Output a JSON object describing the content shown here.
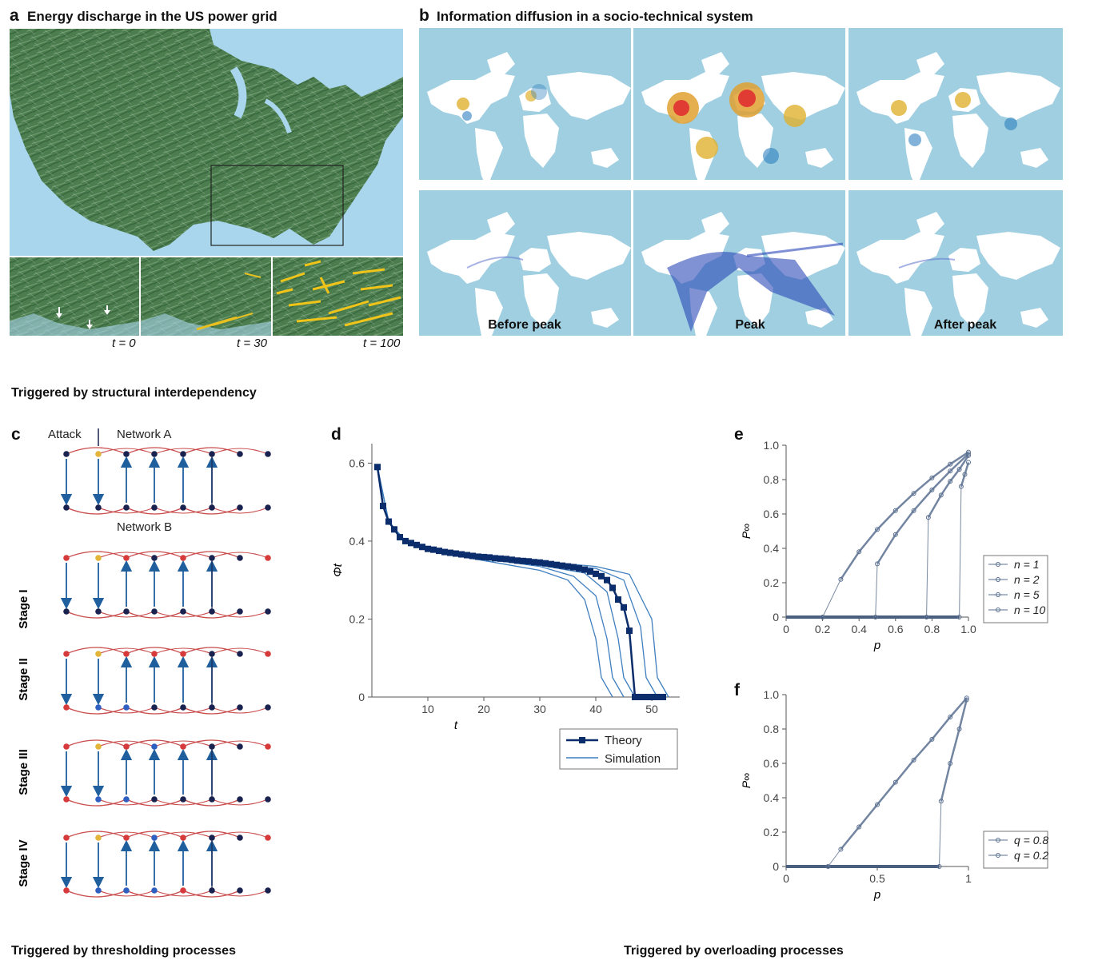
{
  "panel_a": {
    "letter": "a",
    "title": "Energy discharge in the US power grid",
    "time_labels": [
      "t = 0",
      "t = 30",
      "t = 100"
    ]
  },
  "panel_b": {
    "letter": "b",
    "title": "Information diffusion in a socio-technical system",
    "map_labels": [
      "Before peak",
      "Peak",
      "After peak"
    ]
  },
  "sections": {
    "structural": "Triggered by structural interdependency",
    "thresholding": "Triggered by thresholding processes",
    "overloading": "Triggered by overloading processes"
  },
  "panel_c": {
    "letter": "c",
    "attack_label": "Attack",
    "network_a": "Network A",
    "network_b": "Network B",
    "stages": [
      "Stage I",
      "Stage II",
      "Stage III",
      "Stage IV"
    ],
    "colors": {
      "active": "#1a2350",
      "failed": "#d63a3a",
      "attack": "#e3b43a",
      "blue": "#2f5fc0",
      "edge": "#c94b4b",
      "arrow": "#1f5f9e"
    }
  },
  "panel_d": {
    "letter": "d",
    "chart_data": {
      "type": "line",
      "xlabel": "t",
      "ylabel": "Φt",
      "xlim": [
        0,
        55
      ],
      "ylim": [
        0,
        0.65
      ],
      "xticks": [
        10,
        20,
        30,
        40,
        50
      ],
      "yticks": [
        0,
        0.2,
        0.4,
        0.6
      ],
      "series": [
        {
          "name": "Theory",
          "color": "#0c2d6b",
          "x": [
            1,
            2,
            3,
            4,
            5,
            6,
            7,
            8,
            9,
            10,
            11,
            12,
            13,
            14,
            15,
            16,
            17,
            18,
            19,
            20,
            21,
            22,
            23,
            24,
            25,
            26,
            27,
            28,
            29,
            30,
            31,
            32,
            33,
            34,
            35,
            36,
            37,
            38,
            39,
            40,
            41,
            42,
            43,
            44,
            45,
            46,
            47,
            48,
            49,
            50,
            51,
            52
          ],
          "y": [
            0.59,
            0.49,
            0.45,
            0.43,
            0.41,
            0.4,
            0.395,
            0.39,
            0.385,
            0.38,
            0.378,
            0.375,
            0.372,
            0.37,
            0.368,
            0.366,
            0.364,
            0.362,
            0.36,
            0.359,
            0.358,
            0.356,
            0.355,
            0.354,
            0.352,
            0.35,
            0.349,
            0.348,
            0.346,
            0.345,
            0.343,
            0.341,
            0.339,
            0.337,
            0.335,
            0.333,
            0.33,
            0.327,
            0.322,
            0.316,
            0.31,
            0.3,
            0.28,
            0.25,
            0.23,
            0.17,
            0,
            0,
            0,
            0,
            0,
            0
          ]
        },
        {
          "name": "Simulation",
          "color": "#3f7fbf",
          "lines": [
            {
              "x": [
                1,
                3,
                6,
                10,
                20,
                30,
                35,
                38,
                40,
                41,
                43
              ],
              "y": [
                0.59,
                0.45,
                0.4,
                0.375,
                0.35,
                0.325,
                0.3,
                0.25,
                0.15,
                0.05,
                0
              ]
            },
            {
              "x": [
                1,
                3,
                6,
                10,
                20,
                30,
                36,
                40,
                42,
                43,
                45
              ],
              "y": [
                0.59,
                0.45,
                0.4,
                0.375,
                0.355,
                0.335,
                0.31,
                0.26,
                0.15,
                0.05,
                0
              ]
            },
            {
              "x": [
                1,
                3,
                6,
                10,
                20,
                30,
                38,
                42,
                44,
                45,
                47
              ],
              "y": [
                0.59,
                0.45,
                0.4,
                0.378,
                0.358,
                0.338,
                0.318,
                0.27,
                0.15,
                0.05,
                0
              ]
            },
            {
              "x": [
                1,
                3,
                6,
                10,
                20,
                30,
                40,
                45,
                48,
                49,
                51
              ],
              "y": [
                0.59,
                0.45,
                0.4,
                0.38,
                0.36,
                0.345,
                0.33,
                0.3,
                0.18,
                0.05,
                0
              ]
            },
            {
              "x": [
                1,
                3,
                6,
                10,
                20,
                30,
                40,
                46,
                50,
                51,
                53
              ],
              "y": [
                0.59,
                0.45,
                0.4,
                0.382,
                0.362,
                0.348,
                0.335,
                0.315,
                0.2,
                0.05,
                0
              ]
            }
          ]
        }
      ],
      "legend": [
        "Theory",
        "Simulation"
      ],
      "legend_position": "bottom-right"
    }
  },
  "panel_e": {
    "letter": "e",
    "chart_data": {
      "type": "scatter",
      "xlabel": "p",
      "ylabel": "P∞",
      "xlim": [
        0,
        1.0
      ],
      "ylim": [
        0,
        1.0
      ],
      "xticks": [
        "0",
        "0.2",
        "0.4",
        "0.6",
        "0.8",
        "1.0"
      ],
      "yticks": [
        "0",
        "0.2",
        "0.4",
        "0.6",
        "0.8",
        "1.0"
      ],
      "series": [
        {
          "name": "n = 1",
          "x": [
            0.2,
            0.3,
            0.4,
            0.5,
            0.6,
            0.7,
            0.8,
            0.9,
            1.0
          ],
          "y": [
            0,
            0.22,
            0.38,
            0.51,
            0.62,
            0.72,
            0.81,
            0.89,
            0.96
          ]
        },
        {
          "name": "n = 2",
          "x": [
            0.49,
            0.5,
            0.6,
            0.7,
            0.8,
            0.9,
            1.0
          ],
          "y": [
            0,
            0.31,
            0.48,
            0.62,
            0.74,
            0.85,
            0.95
          ]
        },
        {
          "name": "n = 5",
          "x": [
            0.77,
            0.78,
            0.85,
            0.9,
            0.95,
            1.0
          ],
          "y": [
            0,
            0.58,
            0.71,
            0.79,
            0.86,
            0.94
          ]
        },
        {
          "name": "n = 10",
          "x": [
            0.95,
            0.96,
            0.98,
            1.0
          ],
          "y": [
            0,
            0.76,
            0.83,
            0.9
          ]
        }
      ],
      "legend_position": "right"
    }
  },
  "panel_f": {
    "letter": "f",
    "chart_data": {
      "type": "scatter",
      "xlabel": "p",
      "ylabel": "P∞",
      "xlim": [
        0,
        1
      ],
      "ylim": [
        0,
        1.0
      ],
      "xticks": [
        "0",
        "0.5",
        "1"
      ],
      "yticks": [
        "0",
        "0.2",
        "0.4",
        "0.6",
        "0.8",
        "1.0"
      ],
      "series": [
        {
          "name": "q = 0.8",
          "x": [
            0.23,
            0.3,
            0.4,
            0.5,
            0.6,
            0.7,
            0.8,
            0.9,
            0.99
          ],
          "y": [
            0,
            0.1,
            0.23,
            0.36,
            0.49,
            0.62,
            0.74,
            0.87,
            0.98
          ]
        },
        {
          "name": "q = 0.2",
          "x": [
            0.84,
            0.85,
            0.9,
            0.95,
            0.99
          ],
          "y": [
            0,
            0.38,
            0.6,
            0.8,
            0.97
          ]
        }
      ],
      "legend_position": "bottom-right"
    }
  }
}
